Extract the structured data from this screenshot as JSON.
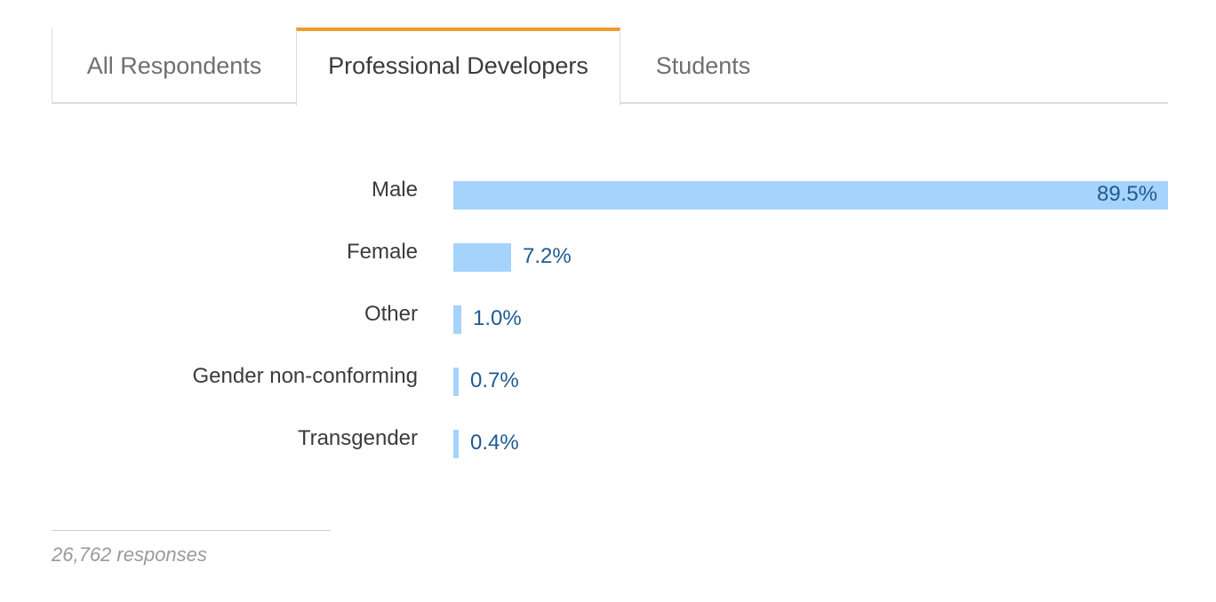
{
  "tabs": [
    {
      "label": "All Respondents",
      "active": false
    },
    {
      "label": "Professional Developers",
      "active": true
    },
    {
      "label": "Students",
      "active": false
    }
  ],
  "colors": {
    "bar": "#a5d3fb",
    "value_text": "#1f5a92",
    "active_tab_accent": "#f49a2f"
  },
  "chart_data": {
    "type": "bar",
    "orientation": "horizontal",
    "categories": [
      "Male",
      "Female",
      "Other",
      "Gender non-conforming",
      "Transgender"
    ],
    "values": [
      89.5,
      7.2,
      1.0,
      0.7,
      0.4
    ],
    "value_labels": [
      "89.5%",
      "7.2%",
      "1.0%",
      "0.7%",
      "0.4%"
    ],
    "xlim": [
      0,
      89.5
    ],
    "grid": false
  },
  "footer": {
    "responses": "26,762 responses"
  }
}
